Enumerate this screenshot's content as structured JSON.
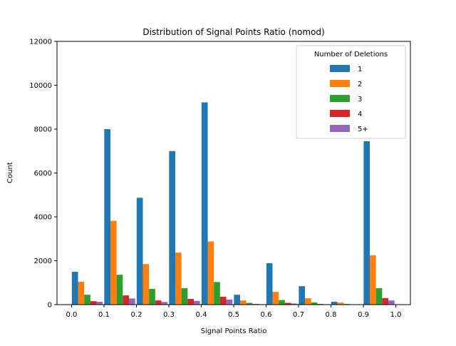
{
  "chart_data": {
    "type": "bar",
    "title": "Distribution of Signal Points Ratio (nomod)",
    "xlabel": "Signal Points Ratio",
    "ylabel": "Count",
    "xlim": [
      -0.045,
      1.045
    ],
    "ylim": [
      0,
      12000
    ],
    "xticks": [
      "0.0",
      "0.1",
      "0.2",
      "0.3",
      "0.4",
      "0.5",
      "0.6",
      "0.7",
      "0.8",
      "0.9",
      "1.0"
    ],
    "yticks": [
      "0",
      "2000",
      "4000",
      "6000",
      "8000",
      "10000",
      "12000"
    ],
    "bin_starts": [
      0.0,
      0.1,
      0.2,
      0.3,
      0.4,
      0.5,
      0.6,
      0.7,
      0.8,
      0.9
    ],
    "bin_width": 0.1,
    "legend": {
      "title": "Number of Deletions",
      "placement": "top-right"
    },
    "series": [
      {
        "name": "1",
        "color": "#1f77b4",
        "values": [
          1500,
          8000,
          4870,
          7000,
          9220,
          450,
          1890,
          840,
          130,
          7450
        ]
      },
      {
        "name": "2",
        "color": "#ff7f0e",
        "values": [
          1040,
          3820,
          1850,
          2370,
          2880,
          190,
          580,
          290,
          90,
          2250
        ]
      },
      {
        "name": "3",
        "color": "#2ca02c",
        "values": [
          450,
          1360,
          720,
          750,
          1030,
          80,
          210,
          100,
          30,
          750
        ]
      },
      {
        "name": "4",
        "color": "#d62728",
        "values": [
          160,
          420,
          190,
          260,
          360,
          30,
          80,
          30,
          10,
          300
        ]
      },
      {
        "name": "5+",
        "color": "#9467bd",
        "values": [
          130,
          280,
          120,
          170,
          230,
          20,
          50,
          20,
          5,
          190
        ]
      }
    ],
    "grid": false
  }
}
